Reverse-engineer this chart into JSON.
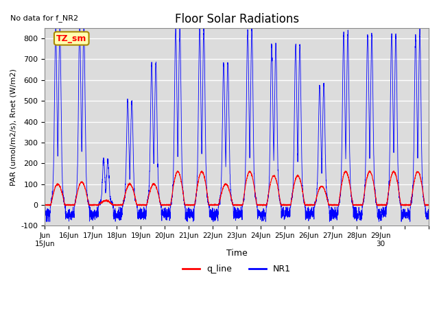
{
  "title": "Floor Solar Radiations",
  "xlabel": "Time",
  "ylabel": "PAR (umol/m2/s), Rnet (W/m2)",
  "no_data_text": "No data for f_NR2",
  "legend_label": "TZ_sm",
  "ylim": [
    -100,
    850
  ],
  "yticks": [
    -100,
    0,
    100,
    200,
    300,
    400,
    500,
    600,
    700,
    800
  ],
  "line_color_q": "#ff0000",
  "line_color_NR1": "#0000ff",
  "bg_color": "#dcdcdc",
  "legend_q": "q_line",
  "legend_NR1": "NR1",
  "dt_hours": 0.1,
  "n_days": 16,
  "day_amps_NR1": [
    750,
    760,
    190,
    440,
    600,
    750,
    750,
    600,
    740,
    680,
    680,
    510,
    725,
    725,
    725,
    725
  ],
  "day_amps_q": [
    100,
    110,
    20,
    100,
    100,
    160,
    160,
    100,
    160,
    140,
    140,
    90,
    160,
    160,
    160,
    160
  ],
  "night_neg_mean": -45,
  "night_neg_std": 15
}
